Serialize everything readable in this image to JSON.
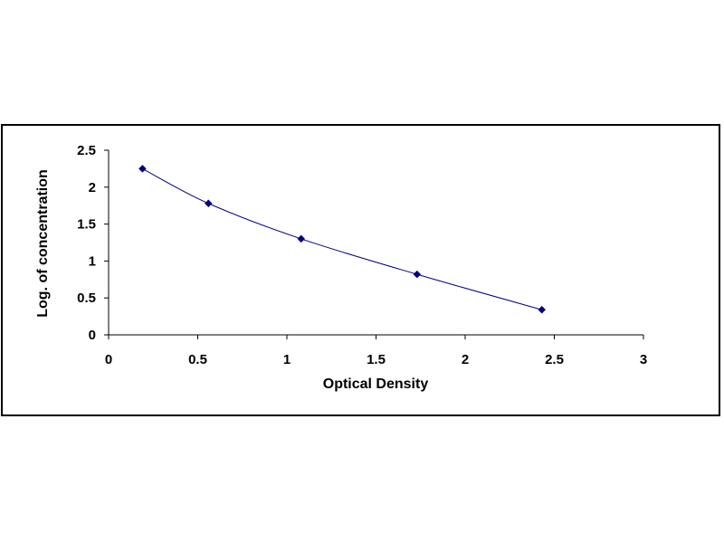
{
  "chart_data": {
    "type": "scatter",
    "title": "",
    "xlabel": "Optical Density",
    "ylabel": "Log. of concentration",
    "xlim": [
      0,
      3
    ],
    "ylim": [
      0,
      2.5
    ],
    "x_ticks": [
      "0",
      "0.5",
      "1",
      "1.5",
      "2",
      "2.5",
      "3"
    ],
    "y_ticks": [
      "0",
      "0.5",
      "1",
      "1.5",
      "2",
      "2.5"
    ],
    "grid": false,
    "legend": "none",
    "series": [
      {
        "x": [
          0.19,
          0.56,
          1.08,
          1.73,
          2.43
        ],
        "y": [
          2.25,
          1.78,
          1.3,
          0.82,
          0.34
        ],
        "marker": "diamond",
        "trendline": true,
        "color": "#000080"
      }
    ]
  }
}
